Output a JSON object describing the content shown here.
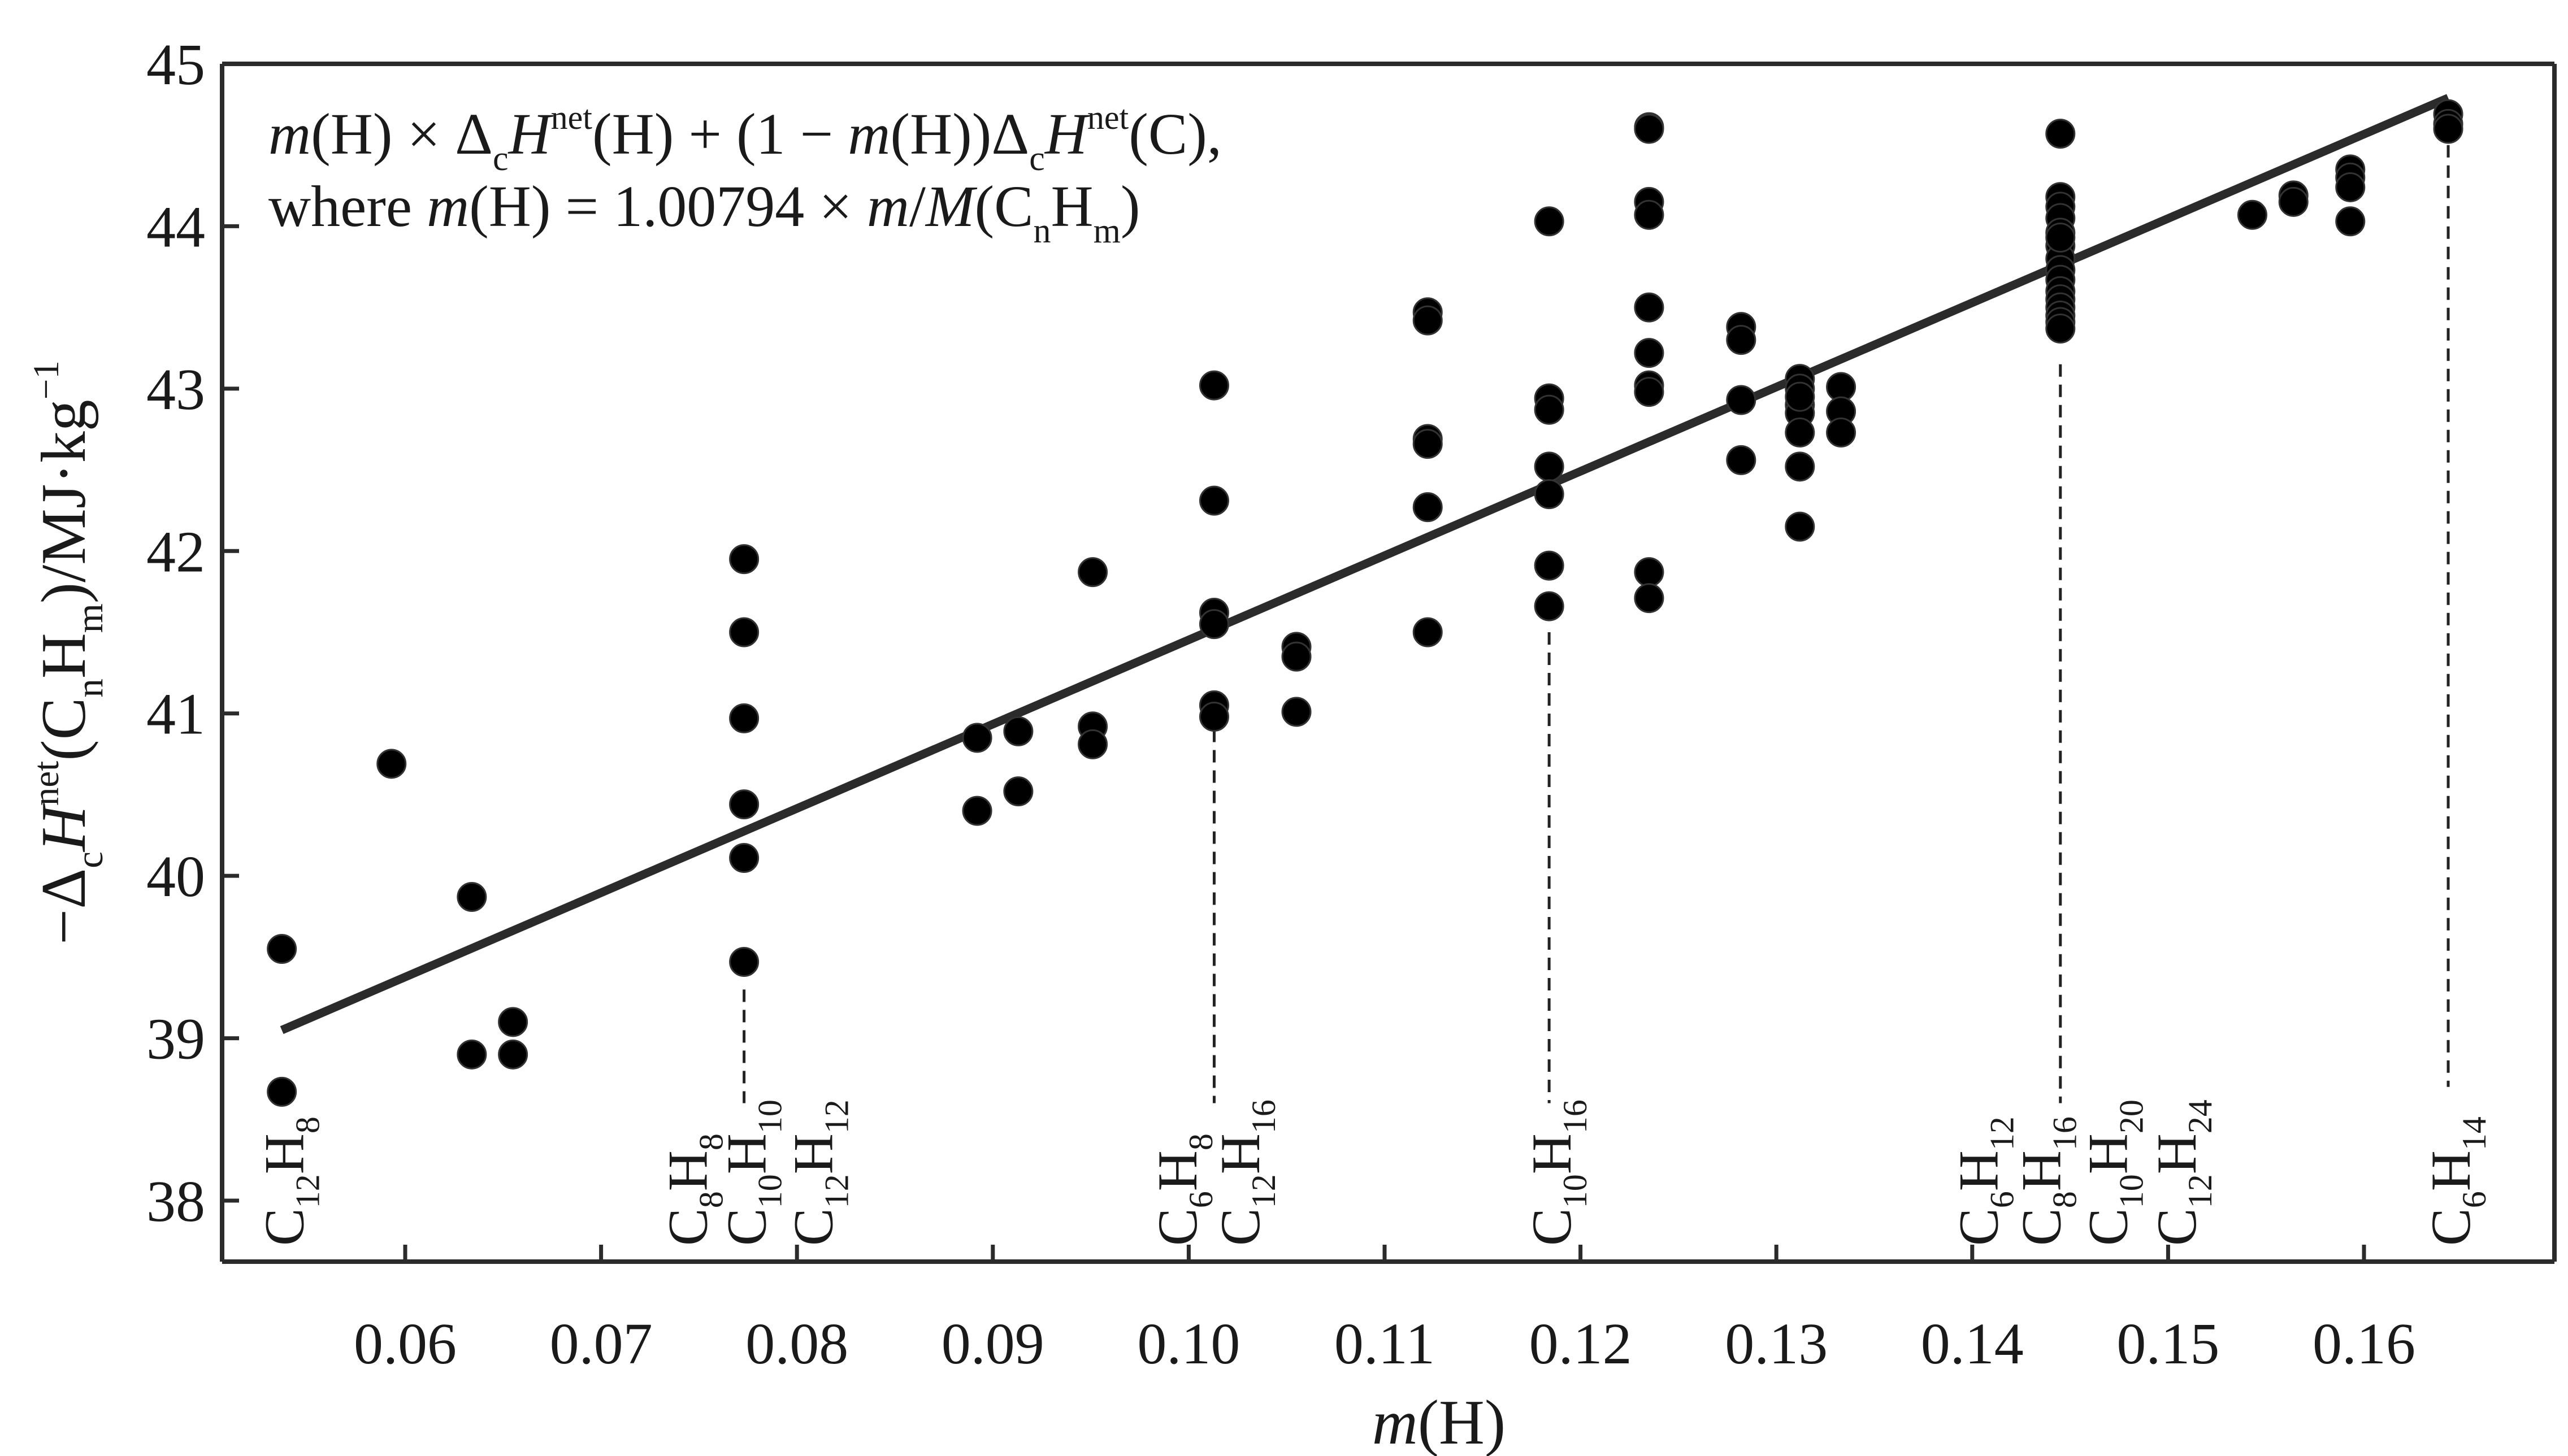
{
  "chart_data": {
    "type": "scatter",
    "title": "",
    "xlabel": {
      "italic": "m",
      "rest": "(H)"
    },
    "ylabel": [
      {
        "t": "−Δ"
      },
      {
        "t": "c",
        "s": "sub"
      },
      {
        "t": "H",
        "i": true
      },
      {
        "t": "net",
        "s": "sup"
      },
      {
        "t": "(C"
      },
      {
        "t": "n",
        "s": "sub"
      },
      {
        "t": "H"
      },
      {
        "t": "m",
        "s": "sub"
      },
      {
        "t": ")/MJ·kg"
      },
      {
        "t": "−1",
        "s": "sup"
      }
    ],
    "xlim": [
      0.05,
      0.166
    ],
    "ylim": [
      37.7,
      45
    ],
    "x_ticks": [
      0.06,
      0.07,
      0.08,
      0.09,
      0.1,
      0.11,
      0.12,
      0.13,
      0.14,
      0.15,
      0.16
    ],
    "x_tick_labels": [
      "0.06",
      "0.07",
      "0.08",
      "0.09",
      "0.10",
      "0.11",
      "0.12",
      "0.13",
      "0.14",
      "0.15",
      "0.16"
    ],
    "y_ticks": [
      38,
      39,
      40,
      41,
      42,
      43,
      44,
      45
    ],
    "y_tick_labels": [
      "38",
      "39",
      "40",
      "41",
      "42",
      "43",
      "44",
      "45"
    ],
    "grid": false,
    "annotation": {
      "line1": [
        {
          "t": "m",
          "i": true
        },
        {
          "t": "(H) × Δ"
        },
        {
          "t": "c",
          "s": "sub"
        },
        {
          "t": "H",
          "i": true
        },
        {
          "t": "net",
          "s": "sup"
        },
        {
          "t": "(H) + (1 − "
        },
        {
          "t": "m",
          "i": true
        },
        {
          "t": "(H))Δ"
        },
        {
          "t": "c",
          "s": "sub"
        },
        {
          "t": "H",
          "i": true
        },
        {
          "t": "net",
          "s": "sup"
        },
        {
          "t": "(C),"
        }
      ],
      "line2": [
        {
          "t": "where "
        },
        {
          "t": "m",
          "i": true
        },
        {
          "t": "(H) = 1.00794 × "
        },
        {
          "t": "m",
          "i": true
        },
        {
          "t": "/"
        },
        {
          "t": "M",
          "i": true
        },
        {
          "t": "(C"
        },
        {
          "t": "n",
          "s": "sub"
        },
        {
          "t": "H"
        },
        {
          "t": "m",
          "s": "sub"
        },
        {
          "t": ")"
        }
      ]
    },
    "fit_line": {
      "x": [
        0.0537,
        0.1643
      ],
      "y": [
        39.05,
        44.79
      ],
      "color": "#2b2b2b"
    },
    "marker_color": "#000000",
    "series": [
      {
        "x": [
          0.0537,
          0.0537
        ],
        "y": [
          39.55,
          38.67
        ]
      },
      {
        "x": [
          0.0593
        ],
        "y": [
          40.69
        ]
      },
      {
        "x": [
          0.0634,
          0.0634,
          0.0655,
          0.0655
        ],
        "y": [
          39.87,
          38.9,
          39.1,
          38.9
        ]
      },
      {
        "x": [
          0.0773,
          0.0773,
          0.0773,
          0.0773,
          0.0773,
          0.0773
        ],
        "y": [
          41.95,
          41.5,
          40.97,
          40.44,
          40.11,
          39.47
        ]
      },
      {
        "x": [
          0.0892,
          0.0892,
          0.0913,
          0.0913
        ],
        "y": [
          40.85,
          40.4,
          40.89,
          40.52
        ]
      },
      {
        "x": [
          0.0951,
          0.0951,
          0.0951
        ],
        "y": [
          41.87,
          40.92,
          40.81
        ]
      },
      {
        "x": [
          0.1013,
          0.1013,
          0.1013,
          0.1013,
          0.1013,
          0.1013
        ],
        "y": [
          43.02,
          42.31,
          41.62,
          41.55,
          41.05,
          40.98
        ]
      },
      {
        "x": [
          0.1055,
          0.1055,
          0.1055
        ],
        "y": [
          41.41,
          41.35,
          41.01
        ]
      },
      {
        "x": [
          0.1122,
          0.1122,
          0.1122,
          0.1122,
          0.1122,
          0.1122
        ],
        "y": [
          43.47,
          43.42,
          42.69,
          42.66,
          42.27,
          41.5
        ]
      },
      {
        "x": [
          0.1184,
          0.1184,
          0.1184,
          0.1184,
          0.1184,
          0.1184,
          0.1184
        ],
        "y": [
          44.03,
          42.94,
          42.87,
          42.52,
          42.35,
          41.91,
          41.66
        ]
      },
      {
        "x": [
          0.1235,
          0.1235,
          0.1235,
          0.1235,
          0.1235,
          0.1235,
          0.1235,
          0.1235,
          0.1235,
          0.1235
        ],
        "y": [
          44.61,
          44.15,
          44.07,
          43.5,
          43.22,
          43.02,
          42.98,
          41.87,
          41.71,
          44.6
        ]
      },
      {
        "x": [
          0.1282,
          0.1282,
          0.1282,
          0.1282
        ],
        "y": [
          43.38,
          43.3,
          42.93,
          42.56
        ]
      },
      {
        "x": [
          0.1312,
          0.1312,
          0.1312,
          0.1312,
          0.1312,
          0.1312,
          0.1312,
          0.1312
        ],
        "y": [
          43.06,
          43.0,
          42.9,
          42.85,
          42.73,
          42.52,
          42.15,
          42.95
        ]
      },
      {
        "x": [
          0.1333,
          0.1333,
          0.1333
        ],
        "y": [
          43.01,
          42.86,
          42.73
        ]
      },
      {
        "x": [
          0.1445,
          0.1445,
          0.1445,
          0.1445,
          0.1445,
          0.1445,
          0.1445,
          0.1445,
          0.1445,
          0.1445,
          0.1445,
          0.1445,
          0.1445,
          0.1445,
          0.1445,
          0.1445
        ],
        "y": [
          44.57,
          44.18,
          44.12,
          44.05,
          43.96,
          43.88,
          43.8,
          43.73,
          43.67,
          43.6,
          43.55,
          43.5,
          43.45,
          43.41,
          43.37,
          43.93
        ]
      },
      {
        "x": [
          0.1543,
          0.1564,
          0.1564
        ],
        "y": [
          44.07,
          44.19,
          44.15
        ]
      },
      {
        "x": [
          0.1593,
          0.1593,
          0.1593,
          0.1593
        ],
        "y": [
          44.35,
          44.3,
          44.24,
          44.03
        ]
      },
      {
        "x": [
          0.1643,
          0.1643,
          0.1643
        ],
        "y": [
          44.69,
          44.63,
          44.6
        ]
      }
    ],
    "dashed_lines": [
      {
        "x": 0.0773,
        "y_top": 39.3,
        "y_bottom": 38.6
      },
      {
        "x": 0.1013,
        "y_top": 40.9,
        "y_bottom": 38.6
      },
      {
        "x": 0.1184,
        "y_top": 41.5,
        "y_bottom": 38.6
      },
      {
        "x": 0.1445,
        "y_top": 43.15,
        "y_bottom": 38.6
      },
      {
        "x": 0.1643,
        "y_top": 44.5,
        "y_bottom": 38.7
      }
    ],
    "compound_labels": [
      {
        "x": 0.0537,
        "parts": [
          {
            "t": "C"
          },
          {
            "t": "12",
            "s": "sub"
          },
          {
            "t": "H"
          },
          {
            "t": "8",
            "s": "sub"
          }
        ]
      },
      {
        "x": 0.0743,
        "parts": [
          {
            "t": "C"
          },
          {
            "t": "8",
            "s": "sub"
          },
          {
            "t": "H"
          },
          {
            "t": "8",
            "s": "sub"
          }
        ]
      },
      {
        "x": 0.0773,
        "parts": [
          {
            "t": "C"
          },
          {
            "t": "10",
            "s": "sub"
          },
          {
            "t": "H"
          },
          {
            "t": "10",
            "s": "sub"
          }
        ]
      },
      {
        "x": 0.0807,
        "parts": [
          {
            "t": "C"
          },
          {
            "t": "12",
            "s": "sub"
          },
          {
            "t": "H"
          },
          {
            "t": "12",
            "s": "sub"
          }
        ]
      },
      {
        "x": 0.0993,
        "parts": [
          {
            "t": "C"
          },
          {
            "t": "6",
            "s": "sub"
          },
          {
            "t": "H"
          },
          {
            "t": "8",
            "s": "sub"
          }
        ]
      },
      {
        "x": 0.1025,
        "parts": [
          {
            "t": "C"
          },
          {
            "t": "12",
            "s": "sub"
          },
          {
            "t": "H"
          },
          {
            "t": "16",
            "s": "sub"
          }
        ]
      },
      {
        "x": 0.1184,
        "parts": [
          {
            "t": "C"
          },
          {
            "t": "10",
            "s": "sub"
          },
          {
            "t": "H"
          },
          {
            "t": "16",
            "s": "sub"
          }
        ]
      },
      {
        "x": 0.1402,
        "parts": [
          {
            "t": "C"
          },
          {
            "t": "6",
            "s": "sub"
          },
          {
            "t": "H"
          },
          {
            "t": "12",
            "s": "sub"
          }
        ]
      },
      {
        "x": 0.1434,
        "parts": [
          {
            "t": "C"
          },
          {
            "t": "8",
            "s": "sub"
          },
          {
            "t": "H"
          },
          {
            "t": "16",
            "s": "sub"
          }
        ]
      },
      {
        "x": 0.1468,
        "parts": [
          {
            "t": "C"
          },
          {
            "t": "10",
            "s": "sub"
          },
          {
            "t": "H"
          },
          {
            "t": "20",
            "s": "sub"
          }
        ]
      },
      {
        "x": 0.1503,
        "parts": [
          {
            "t": "C"
          },
          {
            "t": "12",
            "s": "sub"
          },
          {
            "t": "H"
          },
          {
            "t": "24",
            "s": "sub"
          }
        ]
      },
      {
        "x": 0.1643,
        "parts": [
          {
            "t": "C"
          },
          {
            "t": "6",
            "s": "sub"
          },
          {
            "t": "H"
          },
          {
            "t": "14",
            "s": "sub"
          }
        ]
      }
    ]
  }
}
